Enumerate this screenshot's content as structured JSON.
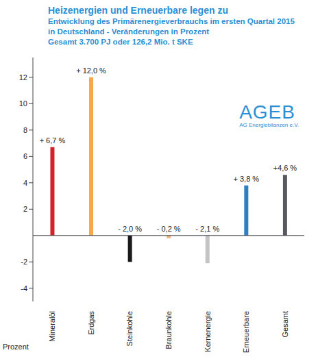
{
  "chart_data": {
    "type": "bar",
    "title": "Heizenergien und Erneuerbare legen zu",
    "subtitle": [
      "Entwicklung des Primärenergieverbrauchs im ersten Quartal 2015",
      "in Deutschland - Veränderungen in Prozent",
      "Gesamt 3.700 PJ oder 126,2 Mio. t SKE"
    ],
    "annotations": [
      "AGEB",
      "AG Energiebilanzen e.V."
    ],
    "y_label": "Prozent",
    "categories": [
      "Mineralöl",
      "Erdgas",
      "Steinkohle",
      "Braunkohle",
      "Kernenergie",
      "Erneuerbare",
      "Gesamt"
    ],
    "values": [
      6.7,
      12.0,
      -2.0,
      -0.2,
      -2.1,
      3.8,
      4.6
    ],
    "value_labels": [
      "+ 6,7 %",
      "+ 12,0 %",
      "- 2,0 %",
      "- 0,2 %",
      "- 2,1 %",
      "+ 3,8 %",
      "+4,6 %"
    ],
    "colors": [
      "#d2232a",
      "#f9a74b",
      "#1a1a1a",
      "#f2b27c",
      "#c4c4c4",
      "#2b7fc2",
      "#56595d"
    ],
    "ylim": [
      -5,
      13.5
    ],
    "yticks": [
      -4,
      -2,
      2,
      4,
      6,
      8,
      10,
      12
    ],
    "grid": false,
    "data_labels": true
  }
}
